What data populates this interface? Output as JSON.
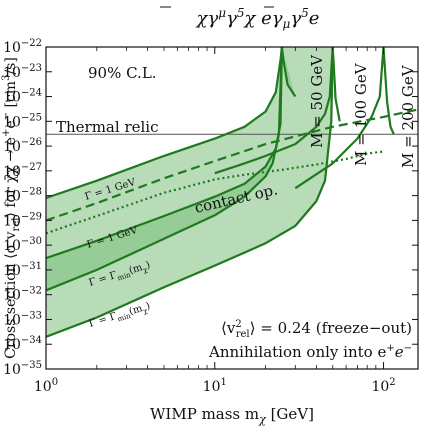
{
  "chart_data": {
    "type": "line",
    "title": "χ̄γ^μγ^5χ ē γ_μγ^5e",
    "title_parts": [
      "χ",
      "γ",
      "μ",
      "γ",
      "5",
      "χ",
      "e",
      "γ",
      "μ",
      "γ",
      "5",
      "e"
    ],
    "xlabel": "WIMP mass m",
    "xlabel_sub": "χ",
    "xlabel_unit": "[GeV]",
    "ylabel": "Cross section ⟨σ v",
    "ylabel_sub": "rel",
    "ylabel_rest": "⟩ for χ̄χ → e",
    "ylabel_sup1": "+",
    "ylabel_mid": "e",
    "ylabel_sup2": "−",
    "ylabel_unit": "[cm",
    "ylabel_unit_sup": "3",
    "ylabel_unit_end": "/s]",
    "x_scale": "log",
    "y_scale": "log",
    "xlim": [
      1,
      160
    ],
    "ylim": [
      1e-35,
      1e-22
    ],
    "grid": false,
    "x_ticks": [
      {
        "value": 1,
        "base": "10",
        "exp": "0"
      },
      {
        "value": 10,
        "base": "10",
        "exp": "1"
      },
      {
        "value": 100,
        "base": "10",
        "exp": "2"
      }
    ],
    "y_ticks": [
      {
        "value": 1e-22,
        "base": "10",
        "exp": "−22"
      },
      {
        "value": 1e-23,
        "base": "10",
        "exp": "−23"
      },
      {
        "value": 1e-24,
        "base": "10",
        "exp": "−24"
      },
      {
        "value": 1e-25,
        "base": "10",
        "exp": "−25"
      },
      {
        "value": 1e-26,
        "base": "10",
        "exp": "−26"
      },
      {
        "value": 1e-27,
        "base": "10",
        "exp": "−27"
      },
      {
        "value": 1e-28,
        "base": "10",
        "exp": "−28"
      },
      {
        "value": 1e-29,
        "base": "10",
        "exp": "−29"
      },
      {
        "value": 1e-30,
        "base": "10",
        "exp": "−30"
      },
      {
        "value": 1e-31,
        "base": "10",
        "exp": "−31"
      },
      {
        "value": 1e-32,
        "base": "10",
        "exp": "−32"
      },
      {
        "value": 1e-33,
        "base": "10",
        "exp": "−33"
      },
      {
        "value": 1e-34,
        "base": "10",
        "exp": "−34"
      },
      {
        "value": 1e-35,
        "base": "10",
        "exp": "−35"
      }
    ],
    "colors": {
      "line": "#1f7a1f",
      "band": "#7cc07c",
      "band_dark": "#4f9f4f",
      "thermal": "#555555"
    },
    "thermal_relic": {
      "label": "Thermal relic",
      "y": 3e-26
    },
    "cl_label": "90% C.L.",
    "note_line1_a": "⟨v",
    "note_line1_sup": "2",
    "note_line1_sub": "rel",
    "note_line1_b": "⟩ = 0.24 (freeze−out)",
    "note_line2_a": "Annihilation only into e",
    "note_line2_sup1": "+",
    "note_line2_b": "e",
    "note_line2_sup2": "−",
    "contact_label": "contact op.",
    "gamma_labels": {
      "g1": "Γ = 1 GeV",
      "gmin_a": "Γ = Γ",
      "gmin_sub": "min",
      "gmin_b": "(m",
      "gmin_sub2": "χ",
      "gmin_c": ")"
    },
    "mediator_labels": [
      "M = 50 GeV",
      "M = 100 GeV",
      "M = 200 GeV"
    ],
    "series": [
      {
        "name": "contact op.",
        "style": "dashed",
        "x": [
          1,
          2,
          5,
          10,
          20,
          50,
          100,
          160
        ],
        "y": [
          1e-29,
          5e-29,
          5e-28,
          2.5e-27,
          1.2e-26,
          6e-26,
          1.5e-25,
          3e-25
        ]
      },
      {
        "name": "contact op. (dotted)",
        "style": "dotted",
        "x": [
          1,
          2,
          5,
          10,
          15,
          20,
          25,
          40,
          60,
          80,
          100
        ],
        "y": [
          3e-30,
          1.5e-29,
          1.3e-28,
          4.5e-28,
          7e-28,
          9e-28,
          1.1e-27,
          1.8e-27,
          3e-27,
          5e-27,
          6e-27
        ]
      },
      {
        "name": "M = 50 GeV, Γ = 1 GeV",
        "style": "solid",
        "x": [
          1,
          2,
          5,
          10,
          15,
          20,
          23,
          24.5,
          25,
          25.5,
          27,
          30
        ],
        "y": [
          8e-29,
          4e-28,
          4e-27,
          2e-26,
          6e-26,
          2.5e-25,
          1.5e-24,
          3e-23,
          1e-22,
          3e-23,
          3e-24,
          1e-24
        ]
      },
      {
        "name": "M = 50 GeV, Γ = 1 GeV lower",
        "style": "solid",
        "x": [
          1,
          2,
          5,
          10,
          15,
          20,
          23,
          24.5,
          25
        ],
        "y": [
          3e-31,
          1.5e-30,
          1.5e-29,
          9e-29,
          3e-28,
          1.5e-27,
          8e-27,
          8e-26,
          1e-22
        ]
      },
      {
        "name": "M = 50 GeV, Γ = Γmin",
        "style": "solid",
        "x": [
          1,
          2,
          5,
          10,
          15,
          20,
          22,
          24,
          25
        ],
        "y": [
          1.5e-32,
          1e-31,
          1.8e-30,
          1.6e-29,
          9e-29,
          6e-28,
          2e-27,
          3e-26,
          1e-22
        ]
      },
      {
        "name": "M = 100 GeV, Γ = Γmin",
        "style": "solid",
        "x": [
          1,
          2,
          5,
          10,
          15,
          20,
          30,
          40,
          45,
          49,
          50
        ],
        "y": [
          2e-34,
          1.2e-33,
          2e-32,
          1.5e-31,
          5e-31,
          1.2e-30,
          6e-30,
          6e-29,
          4e-28,
          1e-25,
          1e-22
        ]
      },
      {
        "name": "M = 100 GeV, Γ = 1 GeV",
        "style": "solid",
        "x": [
          10,
          15,
          20,
          30,
          40,
          45,
          48,
          50,
          52,
          55
        ],
        "y": [
          8e-28,
          2e-27,
          4e-27,
          1.2e-26,
          6e-26,
          2e-25,
          1e-24,
          1e-22,
          8e-25,
          1e-25
        ]
      },
      {
        "name": "M = 200 GeV",
        "style": "solid",
        "x": [
          30,
          50,
          70,
          85,
          95,
          100,
          105,
          110,
          115
        ],
        "y": [
          2e-28,
          2e-27,
          2e-26,
          1.5e-25,
          1e-24,
          1e-22,
          6e-25,
          6e-26,
          3e-26
        ]
      }
    ]
  }
}
